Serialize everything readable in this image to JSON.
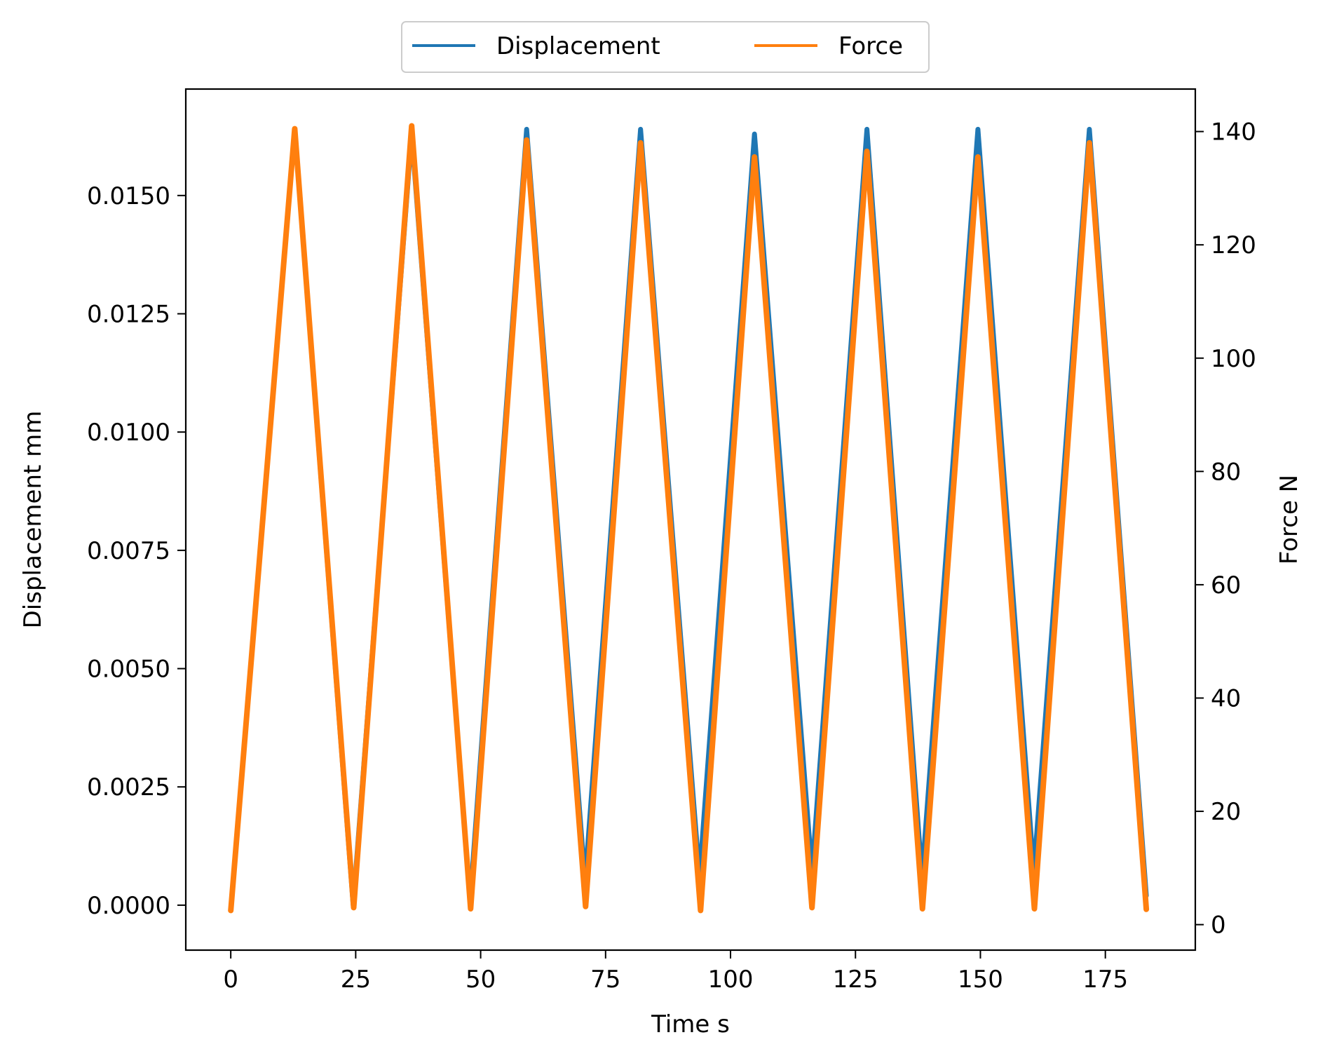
{
  "chart_data": {
    "type": "line",
    "xlabel": "Time s",
    "ylabel": "Displacement mm",
    "y2label": "Force N",
    "xlim": [
      -9,
      193
    ],
    "ylim": [
      -0.00095,
      0.01725
    ],
    "y2lim": [
      -4.5,
      147.5
    ],
    "xticks": [
      0,
      25,
      50,
      75,
      100,
      125,
      150,
      175
    ],
    "yticks": [
      0.0,
      0.0025,
      0.005,
      0.0075,
      0.01,
      0.0125,
      0.015
    ],
    "ytick_labels": [
      "0.0000",
      "0.0025",
      "0.0050",
      "0.0075",
      "0.0100",
      "0.0125",
      "0.0150"
    ],
    "y2ticks": [
      0,
      20,
      40,
      60,
      80,
      100,
      120,
      140
    ],
    "grid": false,
    "legend": {
      "placement": "top-center",
      "columns": 2
    },
    "series": [
      {
        "name": "Displacement",
        "axis": "left",
        "color": "#1f77b4",
        "x": [
          0,
          12.8,
          24.5,
          36.2,
          47.9,
          59.2,
          70.9,
          82.0,
          93.8,
          104.8,
          116.3,
          127.3,
          138.3,
          149.5,
          160.7,
          171.8,
          183.2
        ],
        "values": [
          -0.0001,
          0.0164,
          0.0,
          0.0163,
          0.0001,
          0.0164,
          0.0005,
          0.0164,
          0.0006,
          0.0163,
          0.0007,
          0.0164,
          0.0006,
          0.0164,
          0.0007,
          0.0164,
          0.0002
        ]
      },
      {
        "name": "Force",
        "axis": "right",
        "color": "#ff7f0e",
        "x": [
          0,
          12.8,
          24.6,
          36.2,
          48.0,
          59.2,
          71.0,
          82.0,
          94.0,
          104.8,
          116.3,
          127.3,
          138.4,
          149.5,
          160.8,
          171.8,
          183.2
        ],
        "values": [
          2.5,
          140.5,
          3.0,
          141.0,
          2.8,
          138.5,
          3.2,
          138.0,
          2.5,
          135.5,
          3.0,
          136.5,
          2.8,
          135.5,
          2.8,
          138.0,
          2.7
        ]
      }
    ]
  }
}
